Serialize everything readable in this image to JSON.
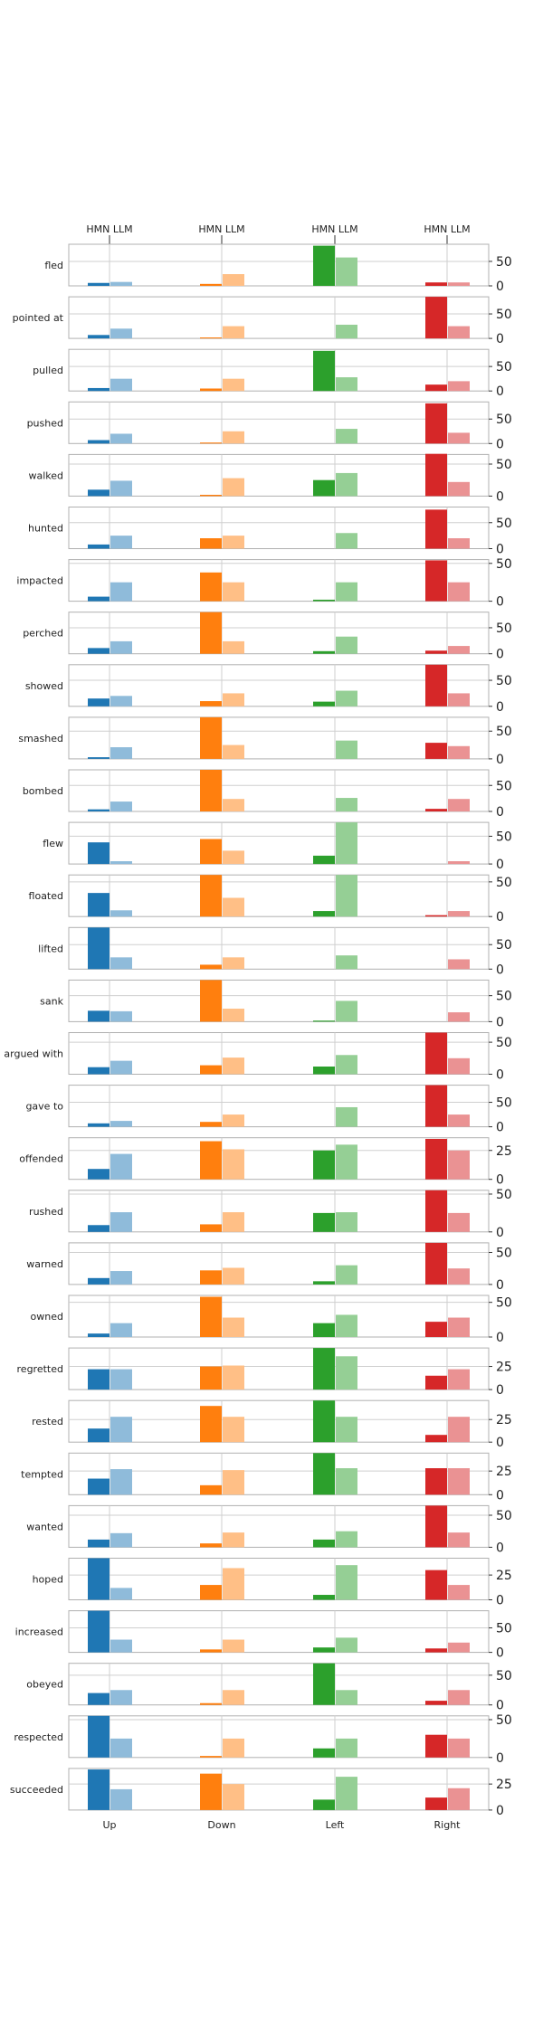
{
  "chart_data": {
    "type": "bar",
    "layout": "small-multiples",
    "categories": [
      "Up",
      "Down",
      "Left",
      "Right"
    ],
    "top_tick_label": "HMN LLM",
    "series": [
      {
        "name": "HMN",
        "shade": "dark"
      },
      {
        "name": "LLM",
        "shade": "light"
      }
    ],
    "colors": {
      "Up": {
        "dark": "#1f77b4",
        "light": "#8fbbda"
      },
      "Down": {
        "dark": "#ff7f0e",
        "light": "#ffbf86"
      },
      "Left": {
        "dark": "#2ca02c",
        "light": "#95cf95"
      },
      "Right": {
        "dark": "#d62728",
        "light": "#ea9293"
      }
    },
    "panels": [
      {
        "verb": "fled",
        "yticks": [
          0,
          50
        ],
        "ylim": [
          0,
          85
        ],
        "hmn": [
          6,
          4,
          82,
          7
        ],
        "llm": [
          8,
          24,
          58,
          7
        ]
      },
      {
        "verb": "pointed at",
        "yticks": [
          0,
          50
        ],
        "ylim": [
          0,
          85
        ],
        "hmn": [
          7,
          2,
          0,
          85
        ],
        "llm": [
          20,
          25,
          28,
          25
        ]
      },
      {
        "verb": "pulled",
        "yticks": [
          0,
          50
        ],
        "ylim": [
          0,
          85
        ],
        "hmn": [
          6,
          5,
          82,
          13
        ],
        "llm": [
          25,
          25,
          28,
          20
        ]
      },
      {
        "verb": "pushed",
        "yticks": [
          0,
          50
        ],
        "ylim": [
          0,
          85
        ],
        "hmn": [
          7,
          2,
          0,
          82
        ],
        "llm": [
          20,
          25,
          30,
          22
        ]
      },
      {
        "verb": "walked",
        "yticks": [
          0,
          50
        ],
        "ylim": [
          0,
          65
        ],
        "hmn": [
          10,
          2,
          25,
          66
        ],
        "llm": [
          24,
          28,
          36,
          22
        ]
      },
      {
        "verb": "hunted",
        "yticks": [
          0,
          50
        ],
        "ylim": [
          0,
          80
        ],
        "hmn": [
          8,
          20,
          0,
          75
        ],
        "llm": [
          25,
          25,
          30,
          20
        ]
      },
      {
        "verb": "impacted",
        "yticks": [
          0,
          50
        ],
        "ylim": [
          0,
          55
        ],
        "hmn": [
          6,
          38,
          2,
          54
        ],
        "llm": [
          25,
          25,
          25,
          25
        ]
      },
      {
        "verb": "perched",
        "yticks": [
          0,
          50
        ],
        "ylim": [
          0,
          80
        ],
        "hmn": [
          11,
          80,
          5,
          6
        ],
        "llm": [
          24,
          24,
          33,
          15
        ]
      },
      {
        "verb": "showed",
        "yticks": [
          0,
          50
        ],
        "ylim": [
          0,
          80
        ],
        "hmn": [
          15,
          10,
          9,
          80
        ],
        "llm": [
          20,
          25,
          30,
          25
        ]
      },
      {
        "verb": "smashed",
        "yticks": [
          0,
          50
        ],
        "ylim": [
          0,
          75
        ],
        "hmn": [
          3,
          75,
          0,
          29
        ],
        "llm": [
          21,
          25,
          33,
          23
        ]
      },
      {
        "verb": "bombed",
        "yticks": [
          0,
          50
        ],
        "ylim": [
          0,
          80
        ],
        "hmn": [
          4,
          80,
          0,
          5
        ],
        "llm": [
          19,
          24,
          26,
          24
        ]
      },
      {
        "verb": "flew",
        "yticks": [
          0,
          50
        ],
        "ylim": [
          0,
          75
        ],
        "hmn": [
          39,
          45,
          15,
          0
        ],
        "llm": [
          5,
          24,
          75,
          5
        ]
      },
      {
        "verb": "floated",
        "yticks": [
          0,
          50
        ],
        "ylim": [
          0,
          60
        ],
        "hmn": [
          34,
          60,
          8,
          2
        ],
        "llm": [
          9,
          27,
          60,
          8
        ]
      },
      {
        "verb": "lifted",
        "yticks": [
          0,
          50
        ],
        "ylim": [
          0,
          85
        ],
        "hmn": [
          85,
          9,
          0,
          0
        ],
        "llm": [
          24,
          24,
          28,
          20
        ]
      },
      {
        "verb": "sank",
        "yticks": [
          0,
          50
        ],
        "ylim": [
          0,
          80
        ],
        "hmn": [
          21,
          80,
          2,
          0
        ],
        "llm": [
          20,
          25,
          40,
          18
        ]
      },
      {
        "verb": "argued with",
        "yticks": [
          0,
          50
        ],
        "ylim": [
          0,
          65
        ],
        "hmn": [
          11,
          14,
          12,
          65
        ],
        "llm": [
          21,
          26,
          30,
          25
        ]
      },
      {
        "verb": "gave to",
        "yticks": [
          0,
          50
        ],
        "ylim": [
          0,
          85
        ],
        "hmn": [
          7,
          10,
          0,
          85
        ],
        "llm": [
          12,
          25,
          40,
          25
        ]
      },
      {
        "verb": "offended",
        "yticks": [
          0,
          25
        ],
        "ylim": [
          0,
          36
        ],
        "hmn": [
          9,
          33,
          25,
          35
        ],
        "llm": [
          22,
          26,
          30,
          25
        ]
      },
      {
        "verb": "rushed",
        "yticks": [
          0,
          50
        ],
        "ylim": [
          0,
          55
        ],
        "hmn": [
          9,
          10,
          25,
          55
        ],
        "llm": [
          26,
          26,
          26,
          25
        ]
      },
      {
        "verb": "warned",
        "yticks": [
          0,
          50
        ],
        "ylim": [
          0,
          65
        ],
        "hmn": [
          10,
          22,
          5,
          65
        ],
        "llm": [
          21,
          26,
          30,
          25
        ]
      },
      {
        "verb": "owned",
        "yticks": [
          0,
          50
        ],
        "ylim": [
          0,
          60
        ],
        "hmn": [
          5,
          58,
          20,
          22
        ],
        "llm": [
          20,
          28,
          32,
          28
        ]
      },
      {
        "verb": "regretted",
        "yticks": [
          0,
          25
        ],
        "ylim": [
          0,
          45
        ],
        "hmn": [
          22,
          25,
          45,
          15
        ],
        "llm": [
          22,
          26,
          36,
          22
        ]
      },
      {
        "verb": "rested",
        "yticks": [
          0,
          25
        ],
        "ylim": [
          0,
          46
        ],
        "hmn": [
          15,
          40,
          46,
          8
        ],
        "llm": [
          28,
          28,
          28,
          28
        ]
      },
      {
        "verb": "tempted",
        "yticks": [
          0,
          25
        ],
        "ylim": [
          0,
          44
        ],
        "hmn": [
          17,
          10,
          44,
          28
        ],
        "llm": [
          27,
          26,
          28,
          28
        ]
      },
      {
        "verb": "wanted",
        "yticks": [
          0,
          50
        ],
        "ylim": [
          0,
          65
        ],
        "hmn": [
          12,
          6,
          12,
          65
        ],
        "llm": [
          22,
          23,
          25,
          23
        ]
      },
      {
        "verb": "hoped",
        "yticks": [
          0,
          25
        ],
        "ylim": [
          0,
          42
        ],
        "hmn": [
          42,
          15,
          5,
          30
        ],
        "llm": [
          12,
          32,
          35,
          15
        ]
      },
      {
        "verb": "increased",
        "yticks": [
          0,
          50
        ],
        "ylim": [
          0,
          85
        ],
        "hmn": [
          85,
          6,
          10,
          8
        ],
        "llm": [
          26,
          26,
          30,
          20
        ]
      },
      {
        "verb": "obeyed",
        "yticks": [
          0,
          50
        ],
        "ylim": [
          0,
          70
        ],
        "hmn": [
          20,
          3,
          70,
          7
        ],
        "llm": [
          25,
          25,
          25,
          25
        ]
      },
      {
        "verb": "respected",
        "yticks": [
          0,
          50
        ],
        "ylim": [
          0,
          55
        ],
        "hmn": [
          55,
          2,
          12,
          30
        ],
        "llm": [
          25,
          25,
          25,
          25
        ]
      },
      {
        "verb": "succeeded",
        "yticks": [
          0,
          25
        ],
        "ylim": [
          0,
          40
        ],
        "hmn": [
          39,
          35,
          10,
          12
        ],
        "llm": [
          20,
          25,
          32,
          21
        ]
      }
    ]
  }
}
